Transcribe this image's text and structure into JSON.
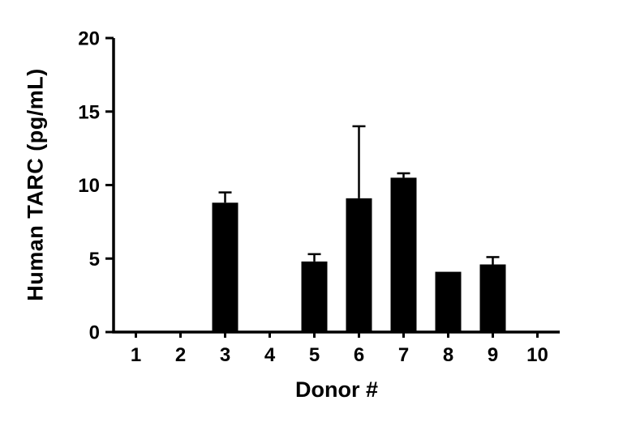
{
  "chart_data": {
    "type": "bar",
    "title": "",
    "xlabel": "Donor #",
    "ylabel": "Human TARC (pg/mL)",
    "categories": [
      "1",
      "2",
      "3",
      "4",
      "5",
      "6",
      "7",
      "8",
      "9",
      "10"
    ],
    "values": [
      0,
      0,
      8.8,
      0,
      4.8,
      9.1,
      10.5,
      4.1,
      4.6,
      0
    ],
    "errors": [
      0,
      0,
      0.7,
      0,
      0.5,
      4.9,
      0.3,
      0,
      0.5,
      0
    ],
    "error_direction": "upper-only",
    "ylim": [
      0,
      20
    ],
    "yticks": [
      0,
      5,
      10,
      15,
      20
    ],
    "bar_color": "#000000",
    "axis_color": "#000000",
    "background": "#ffffff",
    "grid": false,
    "legend": false
  }
}
